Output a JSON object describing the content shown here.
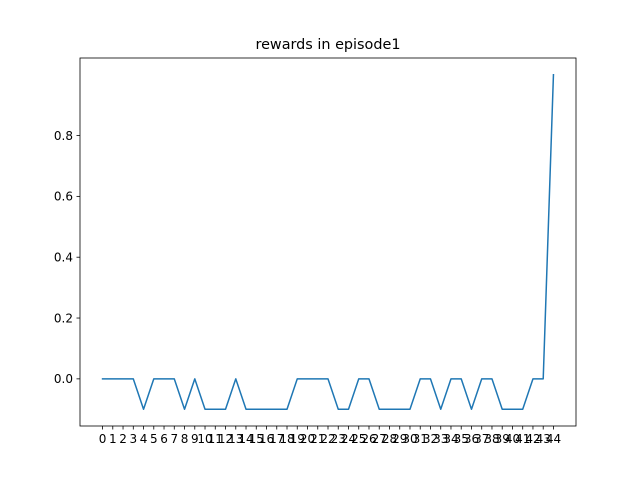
{
  "window": {
    "width": 640,
    "height": 480
  },
  "colors": {
    "line": "#1f77b4",
    "axes": "#000000",
    "background": "#ffffff"
  },
  "chart_data": {
    "type": "line",
    "title": "rewards in episode1",
    "xlabel": "",
    "ylabel": "",
    "x": [
      0,
      1,
      2,
      3,
      4,
      5,
      6,
      7,
      8,
      9,
      10,
      11,
      12,
      13,
      14,
      15,
      16,
      17,
      18,
      19,
      20,
      21,
      22,
      23,
      24,
      25,
      26,
      27,
      28,
      29,
      30,
      31,
      32,
      33,
      34,
      35,
      36,
      37,
      38,
      39,
      40,
      41,
      42,
      43,
      44
    ],
    "x_tick_labels": [
      "0",
      "1",
      "2",
      "3",
      "4",
      "5",
      "6",
      "7",
      "8",
      "9",
      "10",
      "11",
      "12",
      "13",
      "14",
      "15",
      "16",
      "17",
      "18",
      "19",
      "20",
      "21",
      "22",
      "23",
      "24",
      "25",
      "26",
      "27",
      "28",
      "29",
      "30",
      "31",
      "32",
      "33",
      "34",
      "35",
      "36",
      "37",
      "38",
      "39",
      "40",
      "41",
      "42",
      "43",
      "44"
    ],
    "series": [
      {
        "values": [
          0,
          0,
          0,
          0,
          -0.1,
          0,
          0,
          0,
          -0.1,
          0,
          -0.1,
          -0.1,
          -0.1,
          0,
          -0.1,
          -0.1,
          -0.1,
          -0.1,
          -0.1,
          0,
          0,
          0,
          0,
          -0.1,
          -0.1,
          0,
          0,
          -0.1,
          -0.1,
          -0.1,
          -0.1,
          0,
          0,
          -0.1,
          0,
          0,
          -0.1,
          0,
          0,
          -0.1,
          -0.1,
          -0.1,
          0,
          0,
          1.0
        ]
      }
    ],
    "y_ticks": [
      0.0,
      0.2,
      0.4,
      0.6,
      0.8
    ],
    "y_tick_labels": [
      "0.0",
      "0.2",
      "0.4",
      "0.6",
      "0.8"
    ],
    "xlim": [
      -2.2,
      46.2
    ],
    "ylim": [
      -0.155,
      1.055
    ],
    "grid": false,
    "legend": "none"
  }
}
